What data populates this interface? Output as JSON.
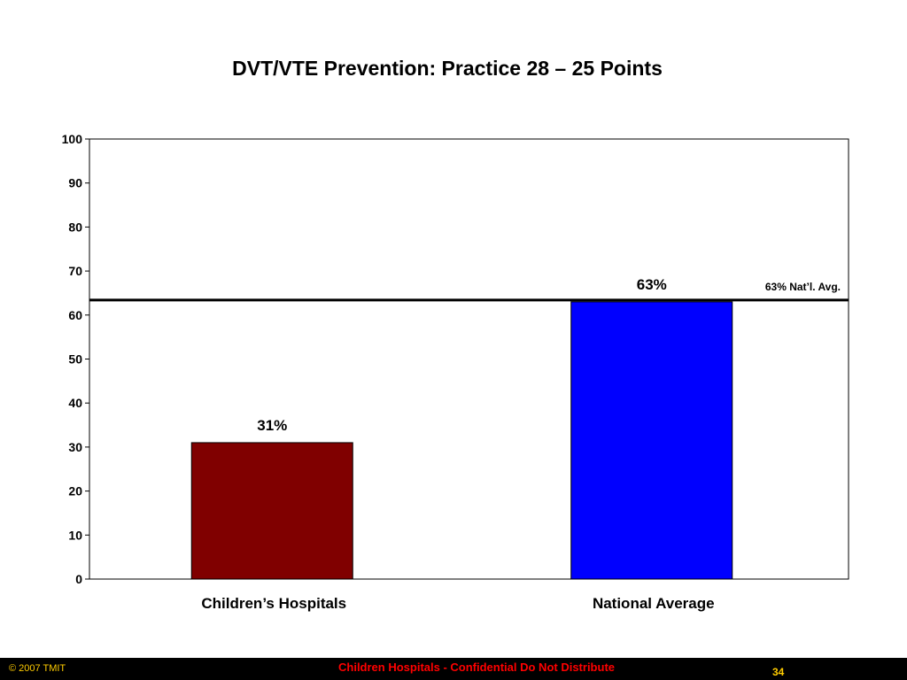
{
  "slide": {
    "title": "DVT/VTE Prevention: Practice 28 – 25 Points"
  },
  "chart_data": {
    "type": "bar",
    "title": "DVT/VTE Prevention: Practice 28 – 25 Points",
    "categories": [
      "Children’s Hospitals",
      "National Average"
    ],
    "values": [
      31,
      63
    ],
    "value_labels": [
      "31%",
      "63%"
    ],
    "bar_colors": [
      "#800000",
      "#0000ff"
    ],
    "xlabel": "",
    "ylabel": "",
    "ylim": [
      0,
      100
    ],
    "yticks": [
      0,
      10,
      20,
      30,
      40,
      50,
      60,
      70,
      80,
      90,
      100
    ],
    "grid": false,
    "reference_line": {
      "value": 63,
      "label": "63% Nat’l. Avg.",
      "color": "#000000"
    }
  },
  "footer": {
    "copyright": "© 2007 TMIT",
    "confidential": "Children Hospitals - Confidential Do Not Distribute",
    "page_number": "34"
  },
  "colors": {
    "footer_background": "#000000",
    "footer_text": "#ffcc00",
    "confidential_text": "#ff0000"
  }
}
